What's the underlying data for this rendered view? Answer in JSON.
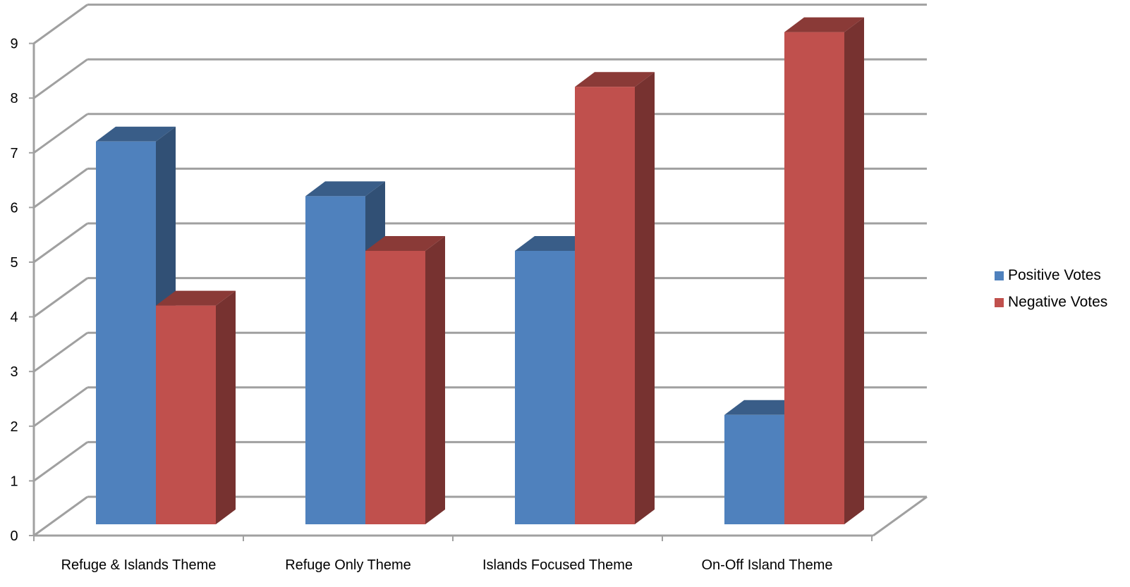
{
  "chart_data": {
    "type": "bar",
    "style": "3d-clustered-column",
    "categories": [
      "Refuge & Islands Theme",
      "Refuge Only Theme",
      "Islands Focused Theme",
      "On-Off Island Theme"
    ],
    "series": [
      {
        "name": "Positive Votes",
        "values": [
          7,
          6,
          5,
          2
        ],
        "color": "#4F81BD"
      },
      {
        "name": "Negative Votes",
        "values": [
          4,
          5,
          8,
          9
        ],
        "color": "#C0504D"
      }
    ],
    "ylim": [
      0,
      9
    ],
    "yticks": [
      "0",
      "1",
      "2",
      "3",
      "4",
      "5",
      "6",
      "7",
      "8",
      "9"
    ],
    "grid": true,
    "legend_position": "right"
  }
}
